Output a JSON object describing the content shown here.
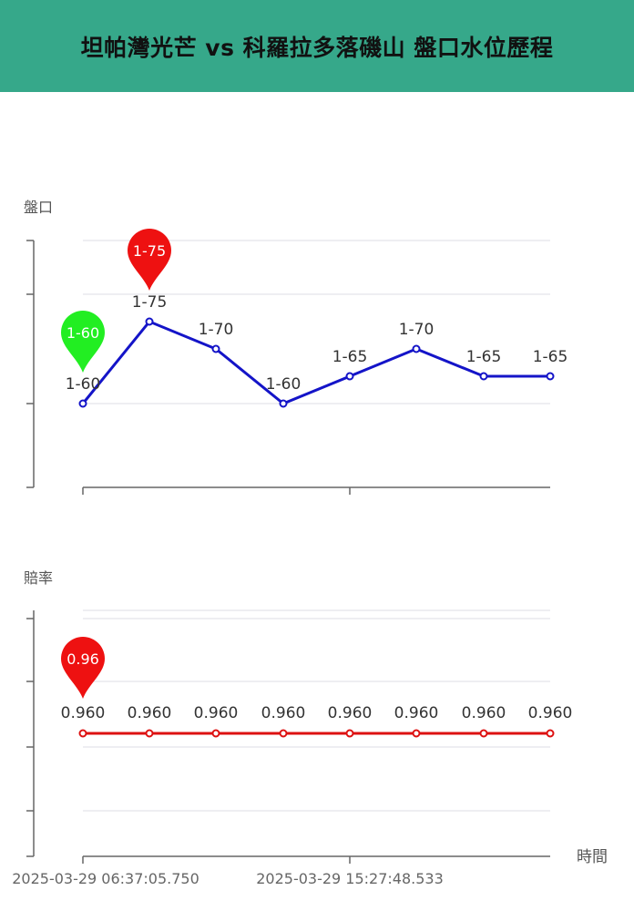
{
  "header": {
    "title": "坦帕灣光芒 vs 科羅拉多落磯山 盤口水位歷程"
  },
  "chart_data": [
    {
      "type": "line",
      "ylabel": "盤口",
      "categories": [
        "1-60",
        "1-75",
        "1-70",
        "1-60",
        "1-65",
        "1-70",
        "1-65",
        "1-65"
      ],
      "values": [
        60,
        75,
        70,
        60,
        65,
        70,
        65,
        65
      ],
      "labels": [
        "1-60",
        "1-75",
        "1-70",
        "1-60",
        "1-65",
        "1-70",
        "1-65",
        "1-65"
      ],
      "ylim": [
        45,
        80
      ],
      "grid": true,
      "color": "#1414c8",
      "markers": [
        {
          "index": 0,
          "label": "1-60",
          "color": "#22ee22"
        },
        {
          "index": 1,
          "label": "1-75",
          "color": "#ee1111"
        }
      ]
    },
    {
      "type": "line",
      "ylabel": "賠率",
      "xlabel": "時間",
      "values": [
        0.96,
        0.96,
        0.96,
        0.96,
        0.96,
        0.96,
        0.96,
        0.96
      ],
      "labels": [
        "0.960",
        "0.960",
        "0.960",
        "0.960",
        "0.960",
        "0.960",
        "0.960",
        "0.960"
      ],
      "grid": true,
      "color": "#dd1111",
      "markers": [
        {
          "index": 0,
          "label": "0.96",
          "color": "#ee1111"
        }
      ],
      "x_ticks": [
        "2025-03-29 06:37:05.750",
        "2025-03-29 15:27:48.533"
      ]
    }
  ]
}
